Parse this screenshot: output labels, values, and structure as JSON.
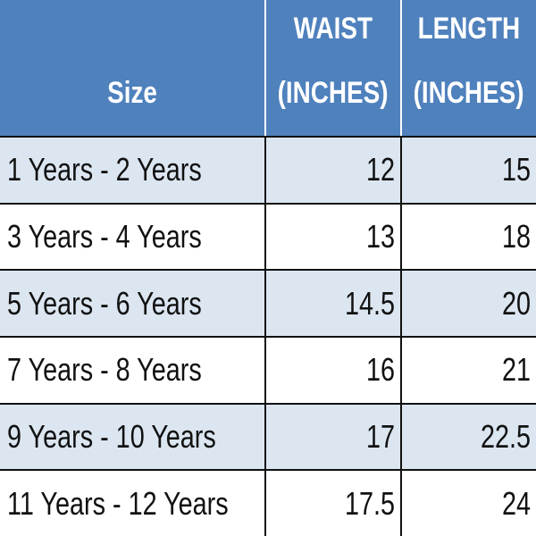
{
  "table": {
    "header": [
      [
        "Size"
      ],
      [
        "WAIST",
        "(INCHES)"
      ],
      [
        "LENGTH",
        "(INCHES)"
      ]
    ],
    "rows": [
      [
        "1 Years - 2 Years",
        12,
        15
      ],
      [
        "3 Years - 4 Years",
        13,
        18
      ],
      [
        "5 Years - 6 Years",
        14.5,
        20
      ],
      [
        "7 Years - 8 Years",
        16,
        21
      ],
      [
        "9 Years - 10 Years",
        17,
        22.5
      ],
      [
        "11 Years - 12 Years",
        17.5,
        24
      ]
    ]
  }
}
